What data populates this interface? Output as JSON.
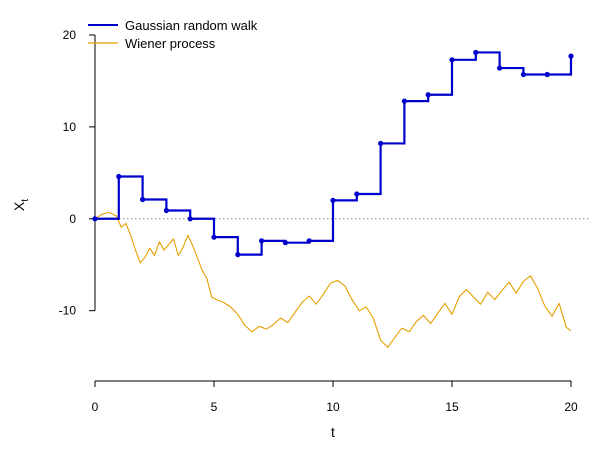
{
  "chart_data": {
    "type": "line",
    "xlabel": "t",
    "ylabel": "X",
    "ylabel_subscript": "t",
    "xlim": [
      0,
      20
    ],
    "ylim": [
      -17,
      20
    ],
    "x_ticks": [
      0,
      5,
      10,
      15,
      20
    ],
    "y_ticks": [
      -10,
      0,
      10,
      20
    ],
    "reference_line": {
      "y": 0,
      "style": "dotted",
      "color": "#888888"
    },
    "legend_position": "top-left",
    "legend": [
      "Gaussian random walk",
      "Wiener process"
    ],
    "series": [
      {
        "name": "Gaussian random walk",
        "style": "step",
        "markers": true,
        "color": "#0000CD",
        "x": [
          0,
          1,
          2,
          3,
          4,
          5,
          6,
          7,
          8,
          9,
          10,
          11,
          12,
          13,
          14,
          15,
          16,
          17,
          18,
          19,
          20
        ],
        "y": [
          0,
          4.6,
          2.1,
          0.9,
          0,
          -2.0,
          -3.9,
          -2.4,
          -2.6,
          -2.4,
          2.0,
          2.7,
          8.2,
          12.8,
          13.5,
          17.3,
          18.1,
          16.4,
          15.7,
          15.7,
          17.7
        ]
      },
      {
        "name": "Wiener process",
        "style": "line",
        "color": "#E69F00",
        "x": [
          0,
          0.3,
          0.6,
          0.9,
          1.1,
          1.3,
          1.5,
          1.7,
          1.9,
          2.1,
          2.3,
          2.5,
          2.7,
          2.9,
          3.1,
          3.3,
          3.5,
          3.7,
          3.9,
          4.1,
          4.3,
          4.5,
          4.7,
          4.9,
          5.1,
          5.4,
          5.7,
          6.0,
          6.3,
          6.6,
          6.9,
          7.2,
          7.5,
          7.8,
          8.1,
          8.4,
          8.7,
          9.0,
          9.3,
          9.6,
          9.9,
          10.2,
          10.5,
          10.8,
          11.1,
          11.4,
          11.7,
          12.0,
          12.3,
          12.6,
          12.9,
          13.2,
          13.5,
          13.8,
          14.1,
          14.4,
          14.7,
          15.0,
          15.3,
          15.6,
          15.9,
          16.2,
          16.5,
          16.8,
          17.1,
          17.4,
          17.7,
          18.0,
          18.3,
          18.6,
          18.9,
          19.2,
          19.5,
          19.8,
          20.0
        ],
        "y": [
          0,
          0.5,
          0.7,
          0.3,
          -0.9,
          -0.5,
          -1.8,
          -3.4,
          -4.8,
          -4.2,
          -3.2,
          -4.0,
          -2.5,
          -3.4,
          -2.8,
          -2.2,
          -4.0,
          -3.1,
          -1.8,
          -2.9,
          -4.2,
          -5.6,
          -6.5,
          -8.5,
          -8.8,
          -9.1,
          -9.6,
          -10.4,
          -11.6,
          -12.3,
          -11.7,
          -12.0,
          -11.5,
          -10.8,
          -11.3,
          -10.2,
          -9.1,
          -8.4,
          -9.3,
          -8.2,
          -7.0,
          -6.7,
          -7.3,
          -8.8,
          -10.0,
          -9.6,
          -10.9,
          -13.2,
          -14.0,
          -12.9,
          -11.9,
          -12.3,
          -11.2,
          -10.5,
          -11.4,
          -10.3,
          -9.2,
          -10.4,
          -8.5,
          -7.7,
          -8.5,
          -9.3,
          -8.0,
          -8.8,
          -7.8,
          -6.9,
          -8.1,
          -6.8,
          -6.2,
          -7.6,
          -9.5,
          -10.6,
          -9.2,
          -11.8,
          -12.2
        ]
      }
    ]
  }
}
